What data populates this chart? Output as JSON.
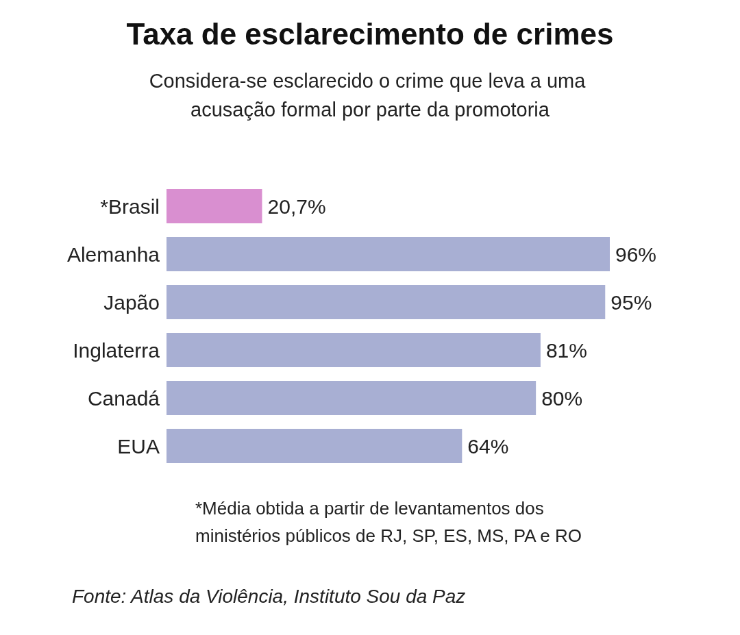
{
  "chart_data": {
    "type": "bar",
    "orientation": "horizontal",
    "title": "Taxa de esclarecimento de crimes",
    "subtitle": "Considera-se esclarecido o crime que leva a uma acusação formal por parte da promotoria",
    "categories": [
      "*Brasil",
      "Alemanha",
      "Japão",
      "Inglaterra",
      "Canadá",
      "EUA"
    ],
    "values": [
      20.7,
      96,
      95,
      81,
      80,
      64
    ],
    "value_labels": [
      "20,7%",
      "96%",
      "95%",
      "81%",
      "80%",
      "64%"
    ],
    "colors": [
      "#d98fd0",
      "#a8afd3",
      "#a8afd3",
      "#a8afd3",
      "#a8afd3",
      "#a8afd3"
    ],
    "annotations": [
      "*Média obtida a partir de levantamentos dos ministérios públicos de RJ, SP, ES, MS, PA e RO",
      "Fonte: Atlas da Violência, Instituto Sou da Paz"
    ]
  }
}
